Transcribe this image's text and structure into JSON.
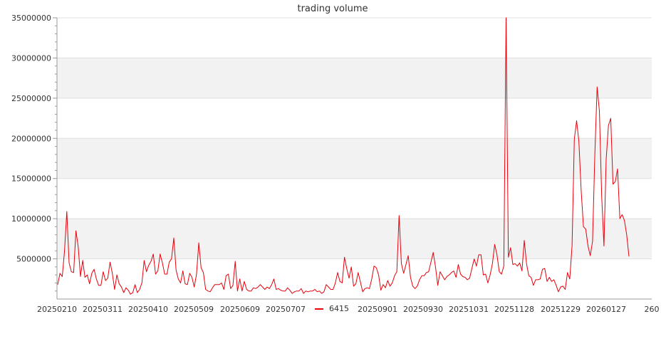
{
  "chart_data": {
    "type": "line",
    "title": "trading volume",
    "xlabel": "",
    "ylabel": "",
    "ylim": [
      0,
      35000000
    ],
    "y_ticks": [
      5000000,
      10000000,
      15000000,
      20000000,
      25000000,
      30000000,
      35000000
    ],
    "y_tick_labels": [
      "5000000",
      "10000000",
      "15000000",
      "20000000",
      "25000000",
      "30000000",
      "35000000"
    ],
    "x_tick_labels": [
      "20250210",
      "20250311",
      "20250410",
      "20250509",
      "20250609",
      "20250707",
      "20250901",
      "20250930",
      "20251031",
      "20251128",
      "20251229",
      "20260127",
      "260"
    ],
    "grid": "horizontal bands",
    "legend": "bottom-center",
    "series": [
      {
        "name": "6415",
        "color": "#e8000b",
        "values": [
          1800000,
          3200000,
          2800000,
          6000000,
          10900000,
          4500000,
          3400000,
          3300000,
          8500000,
          6500000,
          2800000,
          4800000,
          2700000,
          3000000,
          1900000,
          3200000,
          3700000,
          2500000,
          1700000,
          1700000,
          3400000,
          2300000,
          2600000,
          4600000,
          3200000,
          1200000,
          3000000,
          1900000,
          1500000,
          800000,
          1400000,
          1100000,
          600000,
          800000,
          1800000,
          800000,
          1200000,
          2000000,
          4800000,
          3400000,
          4200000,
          4700000,
          5600000,
          3100000,
          3500000,
          5600000,
          4500000,
          3100000,
          3100000,
          4600000,
          5000000,
          7600000,
          3600000,
          2500000,
          2000000,
          3500000,
          1900000,
          1800000,
          3200000,
          2700000,
          1500000,
          3100000,
          7000000,
          3900000,
          3300000,
          1200000,
          1000000,
          900000,
          1400000,
          1800000,
          1800000,
          1800000,
          2000000,
          1200000,
          2900000,
          3100000,
          1300000,
          1700000,
          4700000,
          1000000,
          2500000,
          1000000,
          2200000,
          1200000,
          1000000,
          1000000,
          1400000,
          1300000,
          1500000,
          1800000,
          1500000,
          1200000,
          1500000,
          1300000,
          1800000,
          2500000,
          1200000,
          1300000,
          1100000,
          1000000,
          1000000,
          1400000,
          1100000,
          700000,
          900000,
          1000000,
          1000000,
          1300000,
          700000,
          1000000,
          900000,
          1000000,
          1000000,
          1200000,
          900000,
          1000000,
          700000,
          900000,
          1800000,
          1500000,
          1200000,
          1200000,
          2000000,
          3300000,
          2200000,
          2000000,
          5200000,
          3800000,
          2600000,
          4000000,
          1600000,
          1900000,
          3300000,
          2100000,
          900000,
          1300000,
          1400000,
          1300000,
          2500000,
          4100000,
          3900000,
          3000000,
          1100000,
          1800000,
          1400000,
          2300000,
          1600000,
          2000000,
          2900000,
          3400000,
          10400000,
          4400000,
          3200000,
          4300000,
          5400000,
          2700000,
          1600000,
          1300000,
          1600000,
          2400000,
          2900000,
          2900000,
          3300000,
          3400000,
          4600000,
          5800000,
          4000000,
          1700000,
          3400000,
          2900000,
          2400000,
          2800000,
          3000000,
          3300000,
          3500000,
          2700000,
          4300000,
          3100000,
          2800000,
          2700000,
          2400000,
          2600000,
          3800000,
          5000000,
          4100000,
          5500000,
          5500000,
          3000000,
          3100000,
          2000000,
          3000000,
          4400000,
          6800000,
          5500000,
          3400000,
          3100000,
          4100000,
          35000000,
          5200000,
          6400000,
          4300000,
          4400000,
          4100000,
          4500000,
          3500000,
          7300000,
          4400000,
          2900000,
          2700000,
          1700000,
          2400000,
          2400000,
          2500000,
          3700000,
          3800000,
          2200000,
          2700000,
          2200000,
          2400000,
          1700000,
          900000,
          1500000,
          1600000,
          1200000,
          3300000,
          2500000,
          6600000,
          19900000,
          22200000,
          19600000,
          13500000,
          9000000,
          8700000,
          6600000,
          5400000,
          7200000,
          18000000,
          26400000,
          23400000,
          12800000,
          6600000,
          17400000,
          21600000,
          22500000,
          14300000,
          14600000,
          16200000,
          10000000,
          10500000,
          9800000,
          8000000,
          5300000
        ]
      }
    ]
  }
}
